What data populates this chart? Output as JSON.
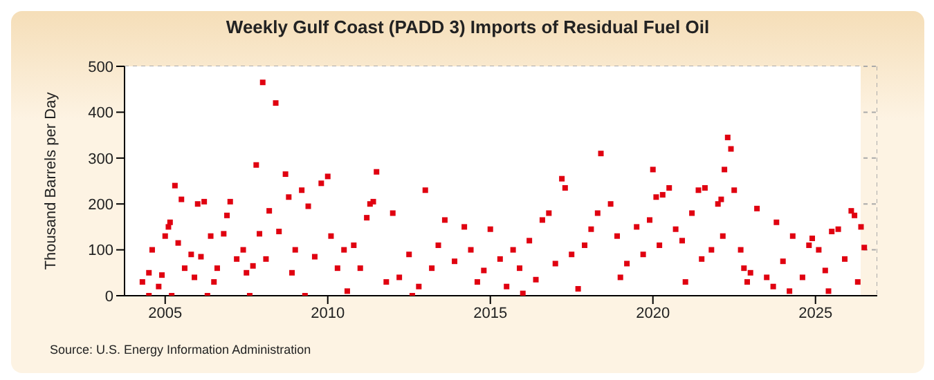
{
  "chart_data": {
    "type": "scatter",
    "title": "Weekly Gulf Coast (PADD 3) Imports of Residual Fuel Oil",
    "ylabel": "Thousand Barrels per Day",
    "annotations": [
      "Source: U.S. Energy Information Administration"
    ],
    "x": [
      2004.3,
      2004.5,
      2004.6,
      2004.8,
      2004.9,
      2005.0,
      2005.1,
      2005.15,
      2005.3,
      2005.5,
      2005.4,
      2005.6,
      2005.8,
      2005.2,
      2004.5,
      2005.9,
      2006.0,
      2006.2,
      2006.4,
      2006.1,
      2006.5,
      2006.8,
      2006.9,
      2007.0,
      2006.6,
      2006.3,
      2007.2,
      2007.4,
      2007.5,
      2007.7,
      2007.9,
      2007.8,
      2008.0,
      2008.2,
      2008.4,
      2008.1,
      2007.6,
      2008.5,
      2008.7,
      2008.8,
      2009.0,
      2009.2,
      2009.4,
      2008.9,
      2009.6,
      2009.8,
      2010.0,
      2009.3,
      2010.1,
      2010.3,
      2010.5,
      2010.8,
      2011.0,
      2011.2,
      2011.3,
      2011.5,
      2011.4,
      2010.6,
      2011.8,
      2012.0,
      2012.2,
      2012.5,
      2012.8,
      2013.0,
      2013.2,
      2013.4,
      2013.6,
      2013.9,
      2014.2,
      2014.4,
      2014.6,
      2014.8,
      2015.0,
      2012.6,
      2015.3,
      2015.5,
      2015.7,
      2015.9,
      2016.2,
      2016.4,
      2016.6,
      2016.8,
      2017.0,
      2017.2,
      2017.3,
      2017.5,
      2017.7,
      2017.9,
      2018.1,
      2018.3,
      2018.4,
      2018.7,
      2018.9,
      2019.2,
      2019.5,
      2019.7,
      2019.9,
      2016.0,
      2020.0,
      2020.1,
      2020.3,
      2020.5,
      2020.2,
      2020.7,
      2020.9,
      2021.2,
      2021.4,
      2021.6,
      2021.8,
      2021.0,
      2022.0,
      2022.1,
      2022.2,
      2022.3,
      2022.4,
      2022.5,
      2022.15,
      2022.7,
      2022.8,
      2022.9,
      2023.2,
      2023.5,
      2023.7,
      2023.8,
      2024.0,
      2024.3,
      2024.6,
      2024.8,
      2024.9,
      2025.1,
      2025.3,
      2025.4,
      2025.5,
      2025.7,
      2025.9,
      2026.1,
      2026.2,
      2026.4,
      2026.5,
      2026.3,
      2024.2,
      2019.0,
      2021.5,
      2023.0
    ],
    "values": [
      30,
      50,
      100,
      20,
      45,
      130,
      150,
      160,
      240,
      210,
      115,
      60,
      90,
      0,
      0,
      40,
      200,
      205,
      130,
      85,
      30,
      135,
      175,
      205,
      60,
      0,
      80,
      100,
      50,
      65,
      135,
      285,
      465,
      185,
      420,
      80,
      0,
      140,
      265,
      215,
      100,
      230,
      195,
      50,
      85,
      245,
      260,
      0,
      130,
      60,
      100,
      110,
      60,
      170,
      200,
      270,
      205,
      10,
      30,
      180,
      40,
      90,
      20,
      230,
      60,
      110,
      165,
      75,
      150,
      100,
      30,
      55,
      145,
      0,
      80,
      20,
      100,
      60,
      120,
      35,
      165,
      180,
      70,
      255,
      235,
      90,
      15,
      110,
      145,
      180,
      310,
      200,
      130,
      70,
      150,
      90,
      165,
      5,
      275,
      215,
      220,
      235,
      110,
      145,
      120,
      180,
      230,
      235,
      100,
      30,
      200,
      210,
      275,
      345,
      320,
      230,
      130,
      100,
      60,
      30,
      190,
      40,
      20,
      160,
      75,
      130,
      40,
      110,
      125,
      100,
      55,
      10,
      140,
      145,
      80,
      185,
      175,
      150,
      105,
      30,
      10,
      40,
      80,
      50
    ],
    "color": "#e00010",
    "marker": "square",
    "xlim": [
      2003.75,
      2026.9
    ],
    "xticks": [
      2005,
      2010,
      2015,
      2020,
      2025
    ],
    "ylim": [
      0,
      500
    ],
    "yticks": [
      0,
      100,
      200,
      300,
      400,
      500
    ],
    "grid": true,
    "legend": false
  }
}
